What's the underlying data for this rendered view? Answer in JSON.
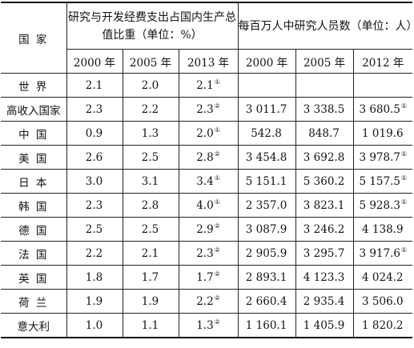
{
  "table": {
    "country_header": "国 家",
    "group_headers": [
      "研究与开发经费支出占国内生产总值比重（单位：%）",
      "每百万人中研究人员数（单位：人）"
    ],
    "year_headers": [
      "2000 年",
      "2005 年",
      "2013 年",
      "2000 年",
      "2005 年",
      "2012 年"
    ],
    "rows": [
      {
        "country": "世  界",
        "v": [
          "2.1",
          "2.0",
          "2.1",
          "",
          "",
          ""
        ],
        "m": [
          "",
          "",
          "①",
          "",
          "",
          ""
        ]
      },
      {
        "country": "高收入国家",
        "v": [
          "2.3",
          "2.2",
          "2.3",
          "3 011.7",
          "3 338.5",
          "3 680.5"
        ],
        "m": [
          "",
          "",
          "②",
          "",
          "",
          "①"
        ]
      },
      {
        "country": "中  国",
        "v": [
          "0.9",
          "1.3",
          "2.0",
          "542.8",
          "848.7",
          "1 019.6"
        ],
        "m": [
          "",
          "",
          "①",
          "",
          "",
          ""
        ]
      },
      {
        "country": "美  国",
        "v": [
          "2.6",
          "2.5",
          "2.8",
          "3 454.8",
          "3 692.8",
          "3 978.7"
        ],
        "m": [
          "",
          "",
          "②",
          "",
          "",
          "①"
        ]
      },
      {
        "country": "日  本",
        "v": [
          "3.0",
          "3.1",
          "3.4",
          "5 151.1",
          "5 360.2",
          "5 157.5"
        ],
        "m": [
          "",
          "",
          "①",
          "",
          "",
          "①"
        ]
      },
      {
        "country": "韩  国",
        "v": [
          "2.3",
          "2.8",
          "4.0",
          "2 357.0",
          "3 823.1",
          "5 928.3"
        ],
        "m": [
          "",
          "",
          "①",
          "",
          "",
          "①"
        ]
      },
      {
        "country": "德  国",
        "v": [
          "2.5",
          "2.5",
          "2.9",
          "3 087.9",
          "3 246.2",
          "4 138.9"
        ],
        "m": [
          "",
          "",
          "②",
          "",
          "",
          ""
        ]
      },
      {
        "country": "法  国",
        "v": [
          "2.2",
          "2.1",
          "2.3",
          "2 905.9",
          "3 295.7",
          "3 917.6"
        ],
        "m": [
          "",
          "",
          "②",
          "",
          "",
          "①"
        ]
      },
      {
        "country": "英  国",
        "v": [
          "1.8",
          "1.7",
          "1.7",
          "2 893.1",
          "4 123.3",
          "4 024.2"
        ],
        "m": [
          "",
          "",
          "②",
          "",
          "",
          ""
        ]
      },
      {
        "country": "荷  兰",
        "v": [
          "1.9",
          "1.9",
          "2.2",
          "2 660.4",
          "2 935.4",
          "3 506.0"
        ],
        "m": [
          "",
          "",
          "②",
          "",
          "",
          ""
        ]
      },
      {
        "country": "意大利",
        "v": [
          "1.0",
          "1.1",
          "1.3",
          "1 160.1",
          "1 405.9",
          "1 820.2"
        ],
        "m": [
          "",
          "",
          "②",
          "",
          "",
          ""
        ]
      }
    ]
  }
}
